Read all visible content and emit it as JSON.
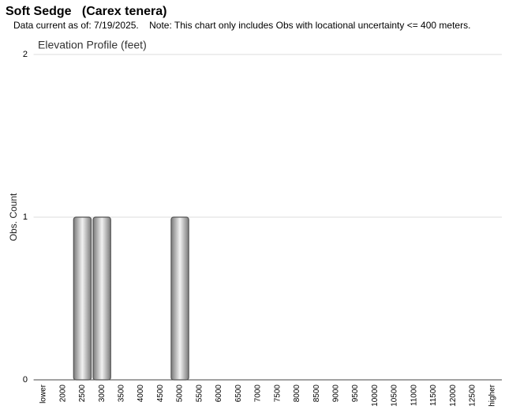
{
  "chart_data": {
    "type": "bar",
    "title": "Soft Sedge   (Carex tenera)",
    "subtitle": "Data current as of: 7/19/2025.    Note: This chart only includes Obs with locational uncertainty <= 400 meters.",
    "chart_title": "Elevation Profile (feet)",
    "y_label": "Obs. Count",
    "categories": [
      "lower",
      "2000",
      "2500",
      "3000",
      "3500",
      "4000",
      "4500",
      "5000",
      "5500",
      "6000",
      "6500",
      "7000",
      "7500",
      "8000",
      "8500",
      "9000",
      "9500",
      "10000",
      "10500",
      "11000",
      "11500",
      "12000",
      "12500",
      "higher"
    ],
    "values": [
      0,
      0,
      1,
      1,
      0,
      0,
      0,
      1,
      0,
      0,
      0,
      0,
      0,
      0,
      0,
      0,
      0,
      0,
      0,
      0,
      0,
      0,
      0,
      0
    ],
    "color": "#9a9a9a",
    "ylim": [
      0,
      2
    ],
    "yticks": [
      0,
      1,
      2
    ],
    "grid": true
  }
}
